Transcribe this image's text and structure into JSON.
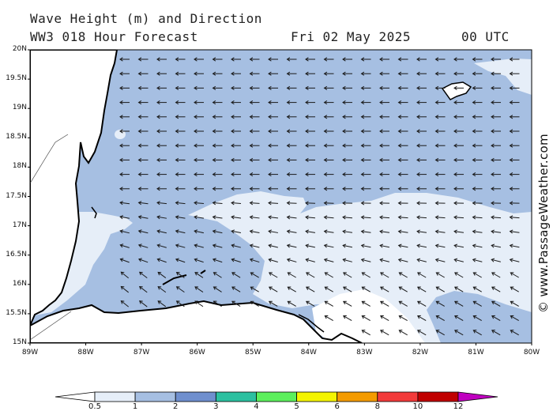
{
  "title": {
    "line1": "Wave Height (m) and Direction",
    "model": "WW3 018 Hour Forecast",
    "date": "Fri 02 May 2025",
    "time": "00 UTC"
  },
  "credit": "© www.PassageWeather.com",
  "map": {
    "lat_labels": [
      "20N",
      "19.5N",
      "19N",
      "18.5N",
      "18N",
      "17.5N",
      "17N",
      "16.5N",
      "16N",
      "15.5N",
      "15N"
    ],
    "lon_labels": [
      "89W",
      "88W",
      "87W",
      "86W",
      "85W",
      "84W",
      "83W",
      "82W",
      "81W",
      "80W"
    ],
    "lat_range": [
      15,
      20
    ],
    "lon_range": [
      -89,
      -80
    ],
    "prevailing_direction": "east to west (arrows pointing west, southwest near coast)"
  },
  "colorbar": {
    "labels": [
      "0.5",
      "1",
      "2",
      "3",
      "4",
      "5",
      "6",
      "8",
      "10",
      "12"
    ],
    "colors": [
      "#e6eef8",
      "#a6bfe2",
      "#6f8fce",
      "#2cc0a0",
      "#5cef5c",
      "#f4f400",
      "#f49b00",
      "#f23a3a",
      "#c00000",
      "#c000c0"
    ]
  },
  "colors": {
    "band_0_5_1": "#e6eef8",
    "band_1_2": "#a6bfe2",
    "land": "#ffffff",
    "coast": "#000000"
  }
}
